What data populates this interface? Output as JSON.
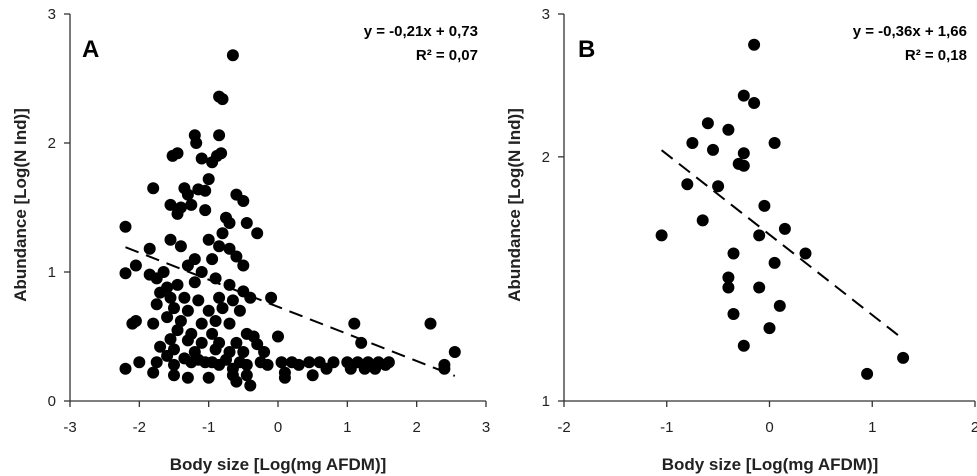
{
  "chart_data": [
    {
      "type": "scatter",
      "panel_label": "A",
      "equation": "y = -0,21x + 0,73",
      "r2": "R² = 0,07",
      "xlabel": "Body size [Log(mg AFDM)]",
      "ylabel": "Abundance [Log(N Ind)]",
      "xlim": [
        -3,
        3
      ],
      "ylim": [
        0,
        3
      ],
      "yscale": "linear",
      "xticks": [
        "-3",
        "-2",
        "-1",
        "0",
        "1",
        "2",
        "3"
      ],
      "yticks": [
        "0",
        "1",
        "2",
        "3"
      ],
      "xtick_values": [
        -3,
        -2,
        -1,
        0,
        1,
        2,
        3
      ],
      "ytick_values": [
        0,
        1,
        2,
        3
      ],
      "grid": false,
      "trendline": {
        "style": "dashed",
        "slope": -0.21,
        "intercept": 0.73,
        "x_range": [
          -2.2,
          2.55
        ]
      },
      "points": [
        [
          -0.65,
          2.68
        ],
        [
          -0.85,
          2.36
        ],
        [
          -0.8,
          2.34
        ],
        [
          -1.2,
          2.06
        ],
        [
          -0.85,
          2.06
        ],
        [
          -1.18,
          2.0
        ],
        [
          -1.52,
          1.9
        ],
        [
          -1.45,
          1.92
        ],
        [
          -0.88,
          1.9
        ],
        [
          -0.82,
          1.92
        ],
        [
          -1.1,
          1.88
        ],
        [
          -0.95,
          1.85
        ],
        [
          -1.0,
          1.72
        ],
        [
          -1.8,
          1.65
        ],
        [
          -1.15,
          1.64
        ],
        [
          -1.35,
          1.65
        ],
        [
          -1.3,
          1.6
        ],
        [
          -1.05,
          1.63
        ],
        [
          -0.6,
          1.6
        ],
        [
          -1.55,
          1.52
        ],
        [
          -1.4,
          1.5
        ],
        [
          -1.05,
          1.48
        ],
        [
          -0.5,
          1.55
        ],
        [
          -1.45,
          1.45
        ],
        [
          -1.25,
          1.52
        ],
        [
          -0.75,
          1.42
        ],
        [
          -0.7,
          1.38
        ],
        [
          -0.45,
          1.38
        ],
        [
          -2.2,
          1.35
        ],
        [
          -0.8,
          1.3
        ],
        [
          -1.55,
          1.25
        ],
        [
          -1.0,
          1.25
        ],
        [
          -0.3,
          1.3
        ],
        [
          -1.85,
          1.18
        ],
        [
          -1.4,
          1.2
        ],
        [
          -0.85,
          1.2
        ],
        [
          -0.7,
          1.18
        ],
        [
          -2.05,
          1.05
        ],
        [
          -1.2,
          1.1
        ],
        [
          -0.95,
          1.1
        ],
        [
          -0.6,
          1.12
        ],
        [
          -1.65,
          1.0
        ],
        [
          -1.3,
          1.05
        ],
        [
          -1.1,
          1.0
        ],
        [
          -0.5,
          1.05
        ],
        [
          -2.2,
          0.99
        ],
        [
          -1.85,
          0.98
        ],
        [
          -1.75,
          0.95
        ],
        [
          -1.6,
          0.88
        ],
        [
          -1.45,
          0.9
        ],
        [
          -1.2,
          0.92
        ],
        [
          -0.9,
          0.95
        ],
        [
          -0.7,
          0.9
        ],
        [
          -0.5,
          0.85
        ],
        [
          -1.7,
          0.84
        ],
        [
          -1.55,
          0.8
        ],
        [
          -1.35,
          0.8
        ],
        [
          -1.15,
          0.78
        ],
        [
          -0.85,
          0.8
        ],
        [
          -0.65,
          0.78
        ],
        [
          -0.4,
          0.8
        ],
        [
          -0.1,
          0.8
        ],
        [
          -1.75,
          0.75
        ],
        [
          -1.5,
          0.72
        ],
        [
          -1.3,
          0.7
        ],
        [
          -1.0,
          0.7
        ],
        [
          -0.8,
          0.72
        ],
        [
          -0.55,
          0.7
        ],
        [
          -1.6,
          0.65
        ],
        [
          -1.4,
          0.62
        ],
        [
          -1.1,
          0.6
        ],
        [
          -0.9,
          0.62
        ],
        [
          -0.7,
          0.6
        ],
        [
          -2.1,
          0.6
        ],
        [
          -2.05,
          0.62
        ],
        [
          -1.8,
          0.6
        ],
        [
          1.1,
          0.6
        ],
        [
          2.2,
          0.6
        ],
        [
          -1.45,
          0.55
        ],
        [
          -1.25,
          0.52
        ],
        [
          -0.95,
          0.52
        ],
        [
          -0.45,
          0.52
        ],
        [
          -0.35,
          0.5
        ],
        [
          0.0,
          0.5
        ],
        [
          -1.55,
          0.48
        ],
        [
          -1.3,
          0.47
        ],
        [
          -1.1,
          0.45
        ],
        [
          -0.85,
          0.45
        ],
        [
          -0.6,
          0.45
        ],
        [
          -0.3,
          0.44
        ],
        [
          -1.7,
          0.42
        ],
        [
          -1.5,
          0.4
        ],
        [
          -1.2,
          0.38
        ],
        [
          -0.9,
          0.4
        ],
        [
          -0.7,
          0.38
        ],
        [
          -0.5,
          0.38
        ],
        [
          -0.2,
          0.38
        ],
        [
          1.2,
          0.45
        ],
        [
          2.55,
          0.38
        ],
        [
          -1.6,
          0.35
        ],
        [
          -1.35,
          0.33
        ],
        [
          -1.15,
          0.32
        ],
        [
          -0.95,
          0.3
        ],
        [
          -0.75,
          0.32
        ],
        [
          -0.55,
          0.3
        ],
        [
          -0.25,
          0.3
        ],
        [
          0.05,
          0.3
        ],
        [
          0.2,
          0.3
        ],
        [
          0.45,
          0.3
        ],
        [
          0.6,
          0.3
        ],
        [
          0.8,
          0.3
        ],
        [
          1.0,
          0.3
        ],
        [
          1.15,
          0.3
        ],
        [
          1.3,
          0.3
        ],
        [
          1.45,
          0.3
        ],
        [
          1.6,
          0.3
        ],
        [
          -2.2,
          0.25
        ],
        [
          -2.0,
          0.3
        ],
        [
          -1.75,
          0.3
        ],
        [
          -1.5,
          0.28
        ],
        [
          -1.25,
          0.3
        ],
        [
          -1.05,
          0.3
        ],
        [
          -0.85,
          0.28
        ],
        [
          -0.65,
          0.25
        ],
        [
          -0.45,
          0.28
        ],
        [
          -0.15,
          0.28
        ],
        [
          0.3,
          0.28
        ],
        [
          0.7,
          0.25
        ],
        [
          1.05,
          0.25
        ],
        [
          1.25,
          0.25
        ],
        [
          1.4,
          0.25
        ],
        [
          1.55,
          0.28
        ],
        [
          2.4,
          0.28
        ],
        [
          -1.8,
          0.22
        ],
        [
          -1.5,
          0.2
        ],
        [
          -1.3,
          0.18
        ],
        [
          -1.0,
          0.18
        ],
        [
          -0.65,
          0.2
        ],
        [
          -0.45,
          0.2
        ],
        [
          0.1,
          0.22
        ],
        [
          0.5,
          0.2
        ],
        [
          -0.6,
          0.15
        ],
        [
          -0.4,
          0.12
        ],
        [
          0.1,
          0.18
        ],
        [
          2.4,
          0.25
        ]
      ]
    },
    {
      "type": "scatter",
      "panel_label": "B",
      "equation": "y = -0,36x + 1,66",
      "r2": "R² = 0,18",
      "xlabel": "Body size [Log(mg AFDM)]",
      "ylabel": "Abundance [Log(N Ind)]",
      "xlim": [
        -2,
        2
      ],
      "ylim": [
        1,
        3
      ],
      "yscale": "log",
      "xticks": [
        "-2",
        "-1",
        "0",
        "1",
        "2"
      ],
      "yticks": [
        "1",
        "2",
        "3"
      ],
      "xtick_values": [
        -2,
        -1,
        0,
        1,
        2
      ],
      "ytick_values": [
        1,
        2,
        3
      ],
      "grid": false,
      "trendline": {
        "style": "dashed",
        "slope": -0.36,
        "intercept": 1.66,
        "x_range": [
          -1.05,
          1.3
        ]
      },
      "points": [
        [
          -0.15,
          2.75
        ],
        [
          -0.25,
          2.38
        ],
        [
          -0.15,
          2.33
        ],
        [
          -0.6,
          2.2
        ],
        [
          -0.4,
          2.16
        ],
        [
          -0.75,
          2.08
        ],
        [
          -0.55,
          2.04
        ],
        [
          -0.25,
          2.02
        ],
        [
          0.05,
          2.08
        ],
        [
          -0.3,
          1.96
        ],
        [
          -0.25,
          1.95
        ],
        [
          -0.8,
          1.85
        ],
        [
          -0.5,
          1.84
        ],
        [
          -0.05,
          1.74
        ],
        [
          -0.65,
          1.67
        ],
        [
          0.15,
          1.63
        ],
        [
          -0.1,
          1.6
        ],
        [
          -1.05,
          1.6
        ],
        [
          0.35,
          1.52
        ],
        [
          -0.35,
          1.52
        ],
        [
          0.05,
          1.48
        ],
        [
          -0.4,
          1.42
        ],
        [
          -0.4,
          1.38
        ],
        [
          -0.1,
          1.38
        ],
        [
          0.1,
          1.31
        ],
        [
          -0.35,
          1.28
        ],
        [
          0.0,
          1.23
        ],
        [
          -0.25,
          1.17
        ],
        [
          0.95,
          1.08
        ],
        [
          1.3,
          1.13
        ]
      ]
    }
  ]
}
